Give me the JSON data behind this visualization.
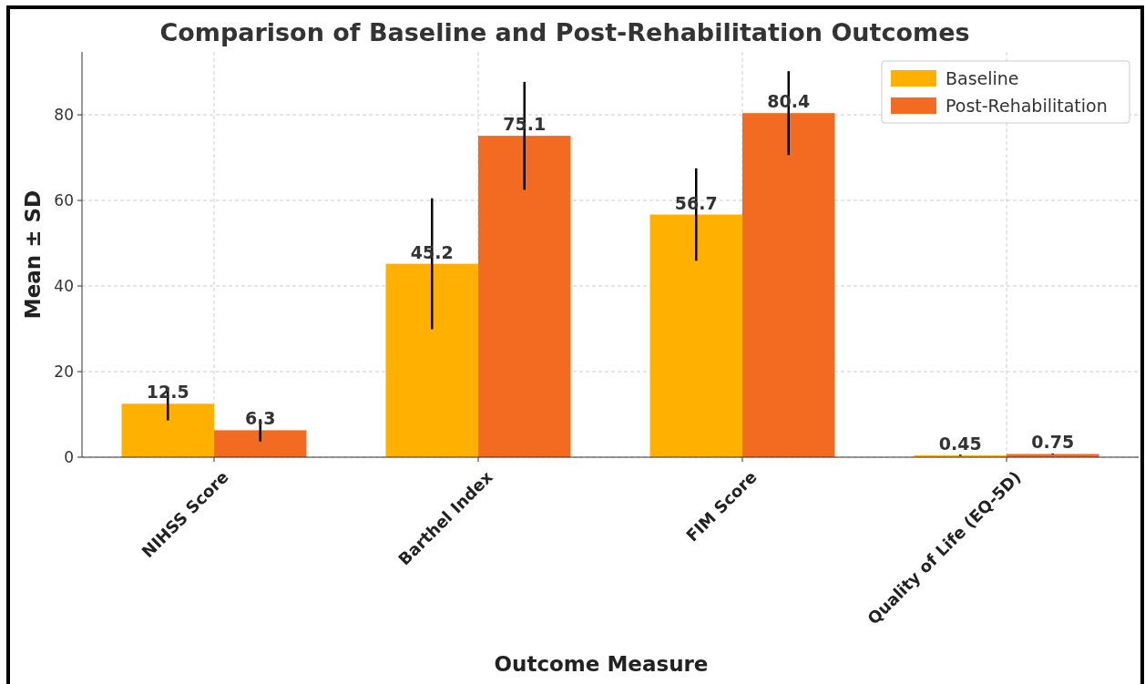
{
  "chart_data": {
    "type": "bar",
    "title": "Comparison of Baseline and Post-Rehabilitation Outcomes",
    "xlabel": "Outcome Measure",
    "ylabel": "Mean ± SD",
    "categories": [
      "NIHSS Score",
      "Barthel Index",
      "FIM Score",
      "Quality of Life (EQ-5D)"
    ],
    "series": [
      {
        "name": "Baseline",
        "color": "#ffb000",
        "values": [
          12.5,
          45.2,
          56.7,
          0.45
        ],
        "errors": [
          3.9,
          15.3,
          10.8,
          0.15
        ]
      },
      {
        "name": "Post-Rehabilitation",
        "color": "#f26b21",
        "values": [
          6.3,
          75.1,
          80.4,
          0.75
        ],
        "errors": [
          2.6,
          12.6,
          9.8,
          0.1
        ]
      }
    ],
    "ylim": [
      0,
      94.7
    ],
    "yticks": [
      0,
      20,
      40,
      60,
      80
    ],
    "grid": true,
    "legend": "top right",
    "data_labels": true
  }
}
